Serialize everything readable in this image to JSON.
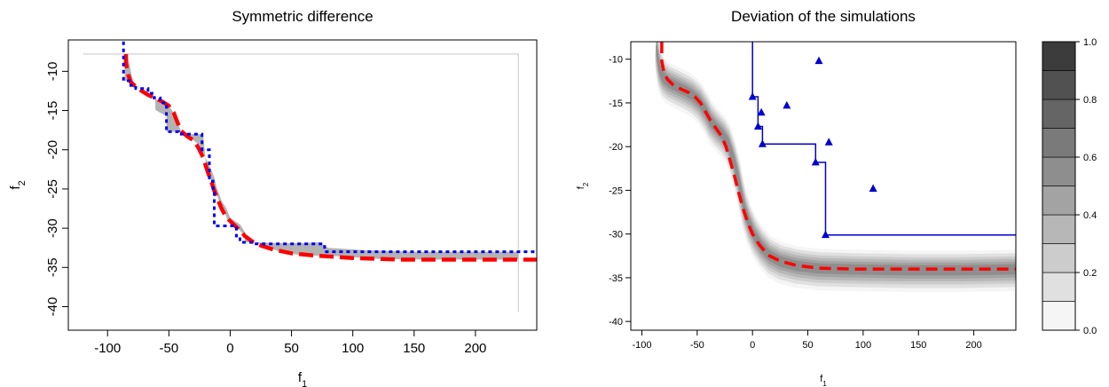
{
  "chart_data": [
    {
      "type": "line",
      "title": "Symmetric difference",
      "xlabel": "f",
      "xlabel_sub": "1",
      "ylabel": "f",
      "ylabel_sub": "2",
      "xlim": [
        -132,
        250
      ],
      "ylim": [
        -43,
        -6
      ],
      "x_ticks": [
        -100,
        -50,
        0,
        50,
        100,
        150,
        200
      ],
      "y_ticks": [
        -10,
        -15,
        -20,
        -25,
        -30,
        -35,
        -40
      ],
      "reference_box": {
        "x": [
          -120,
          235
        ],
        "y": [
          -7.8,
          -40.7
        ]
      },
      "shaded_region": {
        "upper": [
          [
            -86,
            -7.8
          ],
          [
            -86,
            -11.2
          ],
          [
            -81,
            -11.2
          ],
          [
            -76,
            -12.2
          ],
          [
            -70,
            -12.7
          ],
          [
            -66,
            -13.3
          ],
          [
            -61,
            -13.5
          ],
          [
            -58,
            -13.8
          ],
          [
            -52,
            -14.0
          ],
          [
            -50,
            -14.4
          ],
          [
            -46,
            -15.3
          ],
          [
            -43,
            -16.5
          ],
          [
            -40,
            -17.7
          ],
          [
            -38,
            -18.0
          ],
          [
            -22,
            -18.0
          ],
          [
            -20,
            -21.5
          ],
          [
            -17,
            -23.0
          ],
          [
            -14,
            -24.5
          ],
          [
            -12,
            -25.2
          ],
          [
            -8,
            -27.0
          ],
          [
            -5,
            -27.8
          ],
          [
            -2,
            -29.0
          ],
          [
            5,
            -29.8
          ],
          [
            12,
            -31.0
          ],
          [
            20,
            -31.8
          ],
          [
            40,
            -31.9
          ],
          [
            60,
            -31.9
          ],
          [
            72,
            -31.8
          ],
          [
            80,
            -32.5
          ],
          [
            110,
            -32.8
          ],
          [
            150,
            -33.0
          ],
          [
            200,
            -33.0
          ],
          [
            235,
            -33.0
          ]
        ],
        "lower": [
          [
            235,
            -34.0
          ],
          [
            200,
            -34.0
          ],
          [
            160,
            -34.0
          ],
          [
            120,
            -33.9
          ],
          [
            80,
            -33.5
          ],
          [
            60,
            -33.5
          ],
          [
            40,
            -33.0
          ],
          [
            30,
            -32.3
          ],
          [
            20,
            -31.8
          ],
          [
            12,
            -31.8
          ],
          [
            12,
            -30.5
          ],
          [
            8,
            -29.5
          ],
          [
            0,
            -28.7
          ],
          [
            -3,
            -27.5
          ],
          [
            -7,
            -26.5
          ],
          [
            -11,
            -24.8
          ],
          [
            -13,
            -23.5
          ],
          [
            -17,
            -22.0
          ],
          [
            -22,
            -20.4
          ],
          [
            -25,
            -19.4
          ],
          [
            -35,
            -18.2
          ],
          [
            -42,
            -17.7
          ],
          [
            -52,
            -17.7
          ],
          [
            -52,
            -15.7
          ],
          [
            -58,
            -15.2
          ],
          [
            -61,
            -14.9
          ],
          [
            -61,
            -13.4
          ],
          [
            -67,
            -12.9
          ],
          [
            -76,
            -12.2
          ],
          [
            -78,
            -11.6
          ],
          [
            -80,
            -10.8
          ],
          [
            -82,
            -9.2
          ],
          [
            -84,
            -7.8
          ]
        ]
      },
      "series": [
        {
          "style": "dashed-thick",
          "color": "#ff0000",
          "points": [
            [
              -85,
              -7.8
            ],
            [
              -85,
              -9.0
            ],
            [
              -83,
              -10.5
            ],
            [
              -81,
              -11.4
            ],
            [
              -78,
              -11.8
            ],
            [
              -73,
              -12.4
            ],
            [
              -67,
              -13.0
            ],
            [
              -60,
              -13.5
            ],
            [
              -55,
              -13.9
            ],
            [
              -50,
              -14.4
            ],
            [
              -46,
              -15.3
            ],
            [
              -43,
              -16.5
            ],
            [
              -40,
              -17.6
            ],
            [
              -35,
              -18.3
            ],
            [
              -30,
              -18.8
            ],
            [
              -26,
              -19.7
            ],
            [
              -22,
              -21.0
            ],
            [
              -19,
              -22.5
            ],
            [
              -16,
              -23.8
            ],
            [
              -13,
              -25.2
            ],
            [
              -10,
              -26.4
            ],
            [
              -7,
              -27.5
            ],
            [
              -4,
              -28.4
            ],
            [
              0,
              -29.1
            ],
            [
              4,
              -29.7
            ],
            [
              8,
              -30.3
            ],
            [
              12,
              -31.0
            ],
            [
              18,
              -31.7
            ],
            [
              25,
              -32.2
            ],
            [
              35,
              -32.7
            ],
            [
              50,
              -33.2
            ],
            [
              70,
              -33.5
            ],
            [
              100,
              -33.8
            ],
            [
              140,
              -34.0
            ],
            [
              180,
              -34.0
            ],
            [
              250,
              -34.0
            ]
          ]
        },
        {
          "style": "dotted-thick",
          "color": "#0000ee",
          "points": [
            [
              -87,
              -6.2
            ],
            [
              -87,
              -11.2
            ],
            [
              -81,
              -11.2
            ],
            [
              -81,
              -11.8
            ],
            [
              -77,
              -11.8
            ],
            [
              -77,
              -12.2
            ],
            [
              -67,
              -12.2
            ],
            [
              -67,
              -12.8
            ],
            [
              -62,
              -12.8
            ],
            [
              -62,
              -13.4
            ],
            [
              -57,
              -13.4
            ],
            [
              -57,
              -14.0
            ],
            [
              -52,
              -14.0
            ],
            [
              -52,
              -15.7
            ],
            [
              -52,
              -17.7
            ],
            [
              -42,
              -17.7
            ],
            [
              -42,
              -18.0
            ],
            [
              -23,
              -18.0
            ],
            [
              -23,
              -20.0
            ],
            [
              -17,
              -20.0
            ],
            [
              -17,
              -24.0
            ],
            [
              -14,
              -24.0
            ],
            [
              -14,
              -25.5
            ],
            [
              -13,
              -25.5
            ],
            [
              -13,
              -29.7
            ],
            [
              2,
              -29.7
            ],
            [
              2,
              -30.0
            ],
            [
              5,
              -30.0
            ],
            [
              5,
              -31.0
            ],
            [
              8,
              -31.0
            ],
            [
              8,
              -31.8
            ],
            [
              20,
              -31.8
            ],
            [
              20,
              -32.0
            ],
            [
              77,
              -32.0
            ],
            [
              77,
              -33.0
            ],
            [
              250,
              -33.0
            ]
          ]
        }
      ]
    },
    {
      "type": "heatmap",
      "title": "Deviation of the simulations",
      "xlabel": "f",
      "xlabel_sub": "1",
      "ylabel": "f",
      "ylabel_sub": "2",
      "xlim": [
        -110,
        238
      ],
      "ylim": [
        -41,
        -8
      ],
      "x_ticks": [
        -100,
        -50,
        0,
        50,
        100,
        150,
        200
      ],
      "y_ticks": [
        -10,
        -15,
        -20,
        -25,
        -30,
        -35,
        -40
      ],
      "colorbar": {
        "min": 0.0,
        "max": 1.0,
        "ticks": [
          0.0,
          0.2,
          0.4,
          0.6,
          0.8,
          1.0
        ],
        "levels": 10
      },
      "deviation_centerline": [
        [
          -87,
          -8.0
        ],
        [
          -86,
          -9.5
        ],
        [
          -84,
          -11.0
        ],
        [
          -81,
          -12.0
        ],
        [
          -76,
          -12.6
        ],
        [
          -70,
          -13.0
        ],
        [
          -62,
          -13.5
        ],
        [
          -55,
          -14.0
        ],
        [
          -48,
          -14.8
        ],
        [
          -42,
          -16.0
        ],
        [
          -38,
          -17.0
        ],
        [
          -33,
          -17.8
        ],
        [
          -27,
          -18.6
        ],
        [
          -22,
          -19.6
        ],
        [
          -17,
          -21.5
        ],
        [
          -13,
          -23.5
        ],
        [
          -10,
          -25.5
        ],
        [
          -7,
          -27.2
        ],
        [
          -3,
          -28.8
        ],
        [
          2,
          -30.2
        ],
        [
          8,
          -31.4
        ],
        [
          15,
          -32.4
        ],
        [
          25,
          -33.1
        ],
        [
          40,
          -33.6
        ],
        [
          60,
          -33.9
        ],
        [
          90,
          -34.0
        ],
        [
          140,
          -34.1
        ],
        [
          190,
          -34.1
        ],
        [
          238,
          -34.0
        ]
      ],
      "deviation_levels": [
        {
          "value": 0.05,
          "spread": 2.2
        },
        {
          "value": 0.15,
          "spread": 1.8
        },
        {
          "value": 0.25,
          "spread": 1.45
        },
        {
          "value": 0.35,
          "spread": 1.15
        },
        {
          "value": 0.45,
          "spread": 0.85
        },
        {
          "value": 0.55,
          "spread": 0.55
        }
      ],
      "series": [
        {
          "style": "dashed-thick",
          "color": "#ff0000",
          "points": [
            [
              -82,
              -8.0
            ],
            [
              -82,
              -10.2
            ],
            [
              -80,
              -11.5
            ],
            [
              -77,
              -12.3
            ],
            [
              -72,
              -12.9
            ],
            [
              -65,
              -13.4
            ],
            [
              -58,
              -13.8
            ],
            [
              -52,
              -14.3
            ],
            [
              -47,
              -15.0
            ],
            [
              -43,
              -15.9
            ],
            [
              -38,
              -17.0
            ],
            [
              -33,
              -17.9
            ],
            [
              -28,
              -18.8
            ],
            [
              -24,
              -20.0
            ],
            [
              -20,
              -21.7
            ],
            [
              -16,
              -23.5
            ],
            [
              -12,
              -25.5
            ],
            [
              -8,
              -27.3
            ],
            [
              -4,
              -28.8
            ],
            [
              0,
              -30.0
            ],
            [
              6,
              -31.2
            ],
            [
              14,
              -32.4
            ],
            [
              25,
              -33.1
            ],
            [
              40,
              -33.6
            ],
            [
              60,
              -33.9
            ],
            [
              90,
              -34.0
            ],
            [
              140,
              -34.0
            ],
            [
              238,
              -34.0
            ]
          ]
        },
        {
          "style": "step",
          "color": "#0000cc",
          "points": [
            [
              0,
              -8.0
            ],
            [
              0,
              -14.3
            ],
            [
              5,
              -14.3
            ],
            [
              5,
              -17.7
            ],
            [
              9,
              -17.7
            ],
            [
              9,
              -19.7
            ],
            [
              57,
              -19.7
            ],
            [
              57,
              -21.8
            ],
            [
              66,
              -21.8
            ],
            [
              66,
              -30.1
            ],
            [
              238,
              -30.1
            ]
          ]
        }
      ],
      "triangles": [
        [
          0,
          -14.3
        ],
        [
          5,
          -17.7
        ],
        [
          8,
          -16.1
        ],
        [
          9,
          -19.7
        ],
        [
          31,
          -15.3
        ],
        [
          57,
          -21.8
        ],
        [
          60,
          -10.2
        ],
        [
          66,
          -30.1
        ],
        [
          69,
          -19.5
        ],
        [
          109,
          -24.8
        ]
      ]
    }
  ]
}
